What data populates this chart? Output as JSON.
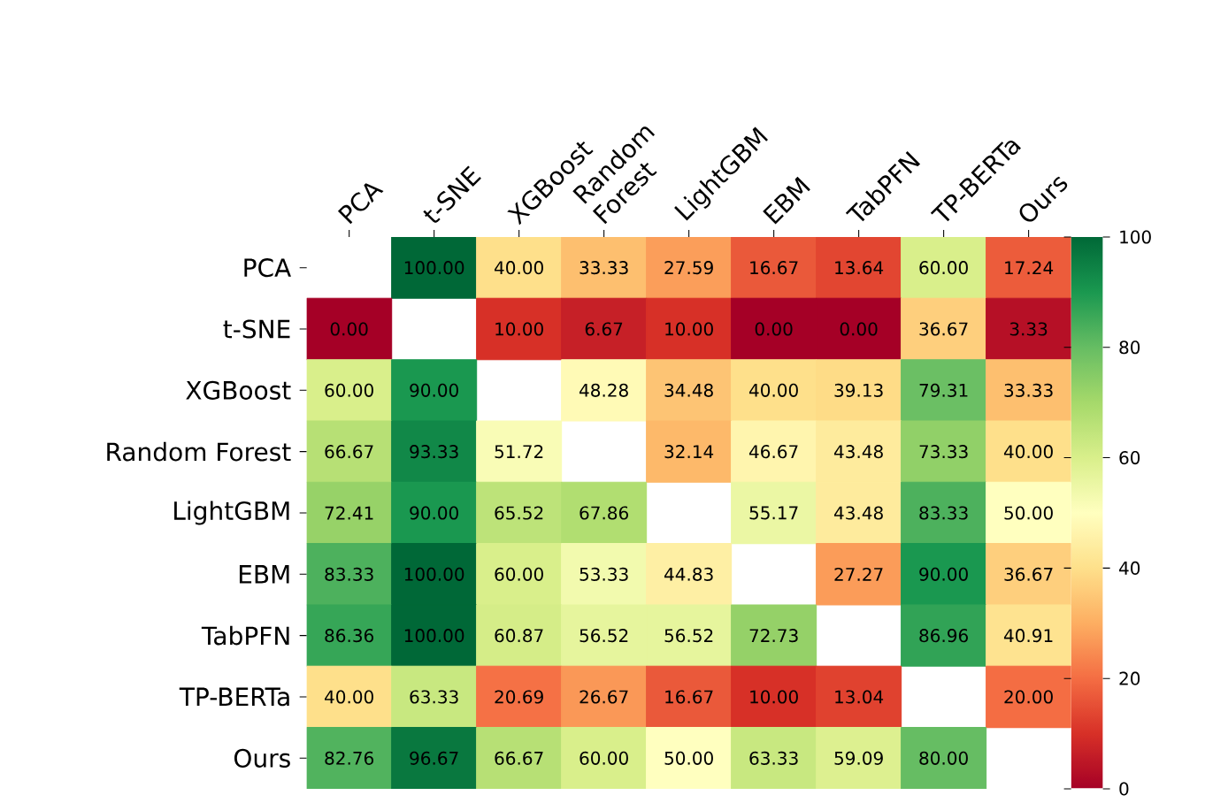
{
  "chart_data": {
    "type": "heatmap",
    "categories": [
      "PCA",
      "t-SNE",
      "XGBoost",
      "Random Forest",
      "LightGBM",
      "EBM",
      "TabPFN",
      "TP-BERTa",
      "Ours"
    ],
    "y_categories": [
      "PCA",
      "t-SNE",
      "XGBoost",
      "Random Forest",
      "LightGBM",
      "EBM",
      "TabPFN",
      "TP-BERTa",
      "Ours"
    ],
    "cells": [
      [
        null,
        100.0,
        40.0,
        33.33,
        27.59,
        16.67,
        13.64,
        60.0,
        17.24
      ],
      [
        0.0,
        null,
        10.0,
        6.67,
        10.0,
        0.0,
        0.0,
        36.67,
        3.33
      ],
      [
        60.0,
        90.0,
        null,
        48.28,
        34.48,
        40.0,
        39.13,
        79.31,
        33.33
      ],
      [
        66.67,
        93.33,
        51.72,
        null,
        32.14,
        46.67,
        43.48,
        73.33,
        40.0
      ],
      [
        72.41,
        90.0,
        65.52,
        67.86,
        null,
        55.17,
        43.48,
        83.33,
        50.0
      ],
      [
        83.33,
        100.0,
        60.0,
        53.33,
        44.83,
        null,
        27.27,
        90.0,
        36.67
      ],
      [
        86.36,
        100.0,
        60.87,
        56.52,
        56.52,
        72.73,
        null,
        86.96,
        40.91
      ],
      [
        40.0,
        63.33,
        20.69,
        26.67,
        16.67,
        10.0,
        13.04,
        null,
        20.0
      ],
      [
        82.76,
        96.67,
        66.67,
        60.0,
        50.0,
        63.33,
        59.09,
        80.0,
        null
      ]
    ],
    "cell_labels": [
      [
        null,
        "100.00",
        "40.00",
        "33.33",
        "27.59",
        "16.67",
        "13.64",
        "60.00",
        "17.24"
      ],
      [
        "0.00",
        null,
        "10.00",
        "6.67",
        "10.00",
        "0.00",
        "0.00",
        "36.67",
        "3.33"
      ],
      [
        "60.00",
        "90.00",
        null,
        "48.28",
        "34.48",
        "40.00",
        "39.13",
        "79.31",
        "33.33"
      ],
      [
        "66.67",
        "93.33",
        "51.72",
        null,
        "32.14",
        "46.67",
        "43.48",
        "73.33",
        "40.00"
      ],
      [
        "72.41",
        "90.00",
        "65.52",
        "67.86",
        null,
        "55.17",
        "43.48",
        "83.33",
        "50.00"
      ],
      [
        "83.33",
        "100.00",
        "60.00",
        "53.33",
        "44.83",
        null,
        "27.27",
        "90.00",
        "36.67"
      ],
      [
        "86.36",
        "100.00",
        "60.87",
        "56.52",
        "56.52",
        "72.73",
        null,
        "86.96",
        "40.91"
      ],
      [
        "40.00",
        "63.33",
        "20.69",
        "26.67",
        "16.67",
        "10.00",
        "13.04",
        null,
        "20.00"
      ],
      [
        "82.76",
        "96.67",
        "66.67",
        "60.00",
        "50.00",
        "63.33",
        "59.09",
        "80.00",
        null
      ]
    ],
    "clim": [
      0,
      100
    ],
    "cticks": [
      0,
      20,
      40,
      60,
      80,
      100
    ]
  }
}
